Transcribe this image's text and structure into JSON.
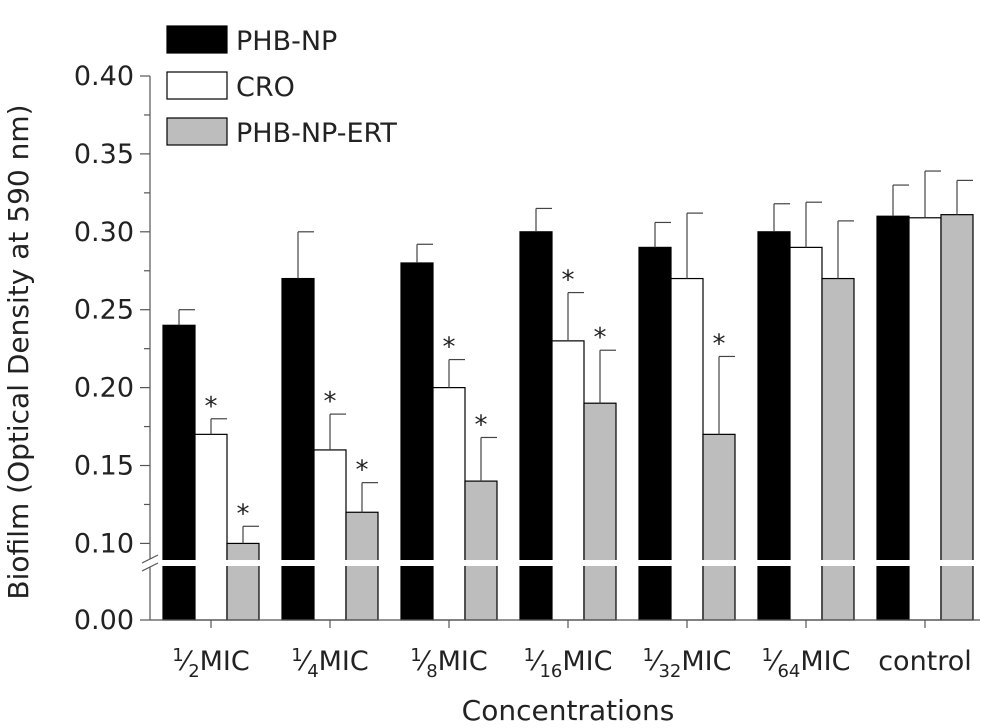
{
  "chart_data": {
    "type": "bar",
    "xlabel": "Concentrations",
    "ylabel": "Biofilm (Optical Density at 590 nm)",
    "ylim_upper": [
      0.09,
      0.4
    ],
    "ylim_lower": [
      0.0,
      0.02
    ],
    "yticks": [
      "0.00",
      "0.10",
      "0.15",
      "0.20",
      "0.25",
      "0.30",
      "0.35",
      "0.40"
    ],
    "categories": [
      {
        "num": "1",
        "den": "2",
        "suffix": "MIC"
      },
      {
        "num": "1",
        "den": "4",
        "suffix": "MIC"
      },
      {
        "num": "1",
        "den": "8",
        "suffix": "MIC"
      },
      {
        "num": "1",
        "den": "16",
        "suffix": "MIC"
      },
      {
        "num": "1",
        "den": "32",
        "suffix": "MIC"
      },
      {
        "num": "1",
        "den": "64",
        "suffix": "MIC"
      },
      {
        "num": "",
        "den": "",
        "suffix": "control"
      }
    ],
    "series": [
      {
        "name": "PHB-NP",
        "color": "#000000",
        "values": [
          0.24,
          0.27,
          0.28,
          0.3,
          0.29,
          0.3,
          0.31
        ],
        "errors": [
          0.01,
          0.03,
          0.012,
          0.015,
          0.016,
          0.018,
          0.02
        ],
        "significant": [
          false,
          false,
          false,
          false,
          false,
          false,
          false
        ]
      },
      {
        "name": "CRO",
        "color": "#ffffff",
        "values": [
          0.17,
          0.16,
          0.2,
          0.23,
          0.27,
          0.29,
          0.309
        ],
        "errors": [
          0.01,
          0.023,
          0.018,
          0.031,
          0.042,
          0.029,
          0.03
        ],
        "significant": [
          true,
          true,
          true,
          true,
          false,
          false,
          false
        ]
      },
      {
        "name": "PHB-NP-ERT",
        "color": "#bdbdbd",
        "values": [
          0.1,
          0.12,
          0.14,
          0.19,
          0.17,
          0.27,
          0.311
        ],
        "errors": [
          0.011,
          0.019,
          0.028,
          0.034,
          0.05,
          0.037,
          0.022
        ],
        "significant": [
          true,
          true,
          true,
          true,
          true,
          false,
          false
        ]
      }
    ],
    "significance_marker": "*",
    "legend_position": "top-left",
    "grid": false
  }
}
